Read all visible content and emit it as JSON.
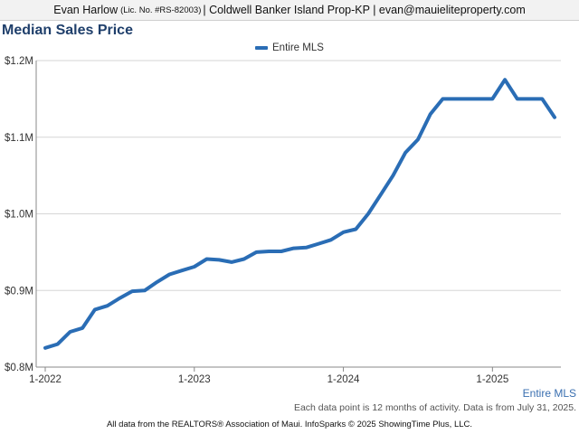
{
  "header": {
    "agent_name": "Evan Harlow",
    "license": "(Lic. No. #RS-82003)",
    "details": "| Coldwell Banker Island Prop-KP | evan@mauieliteproperty.com"
  },
  "chart_data": {
    "type": "line",
    "title": "Median Sales Price",
    "xlabel": "",
    "ylabel": "",
    "x_ticks": [
      "1-2022",
      "1-2023",
      "1-2024",
      "1-2025"
    ],
    "y_ticks": [
      "$0.8M",
      "$0.9M",
      "$1.0M",
      "$1.1M",
      "$1.2M"
    ],
    "y_tick_values": [
      0.8,
      0.9,
      1.0,
      1.1,
      1.2
    ],
    "ylim": [
      0.8,
      1.2
    ],
    "xlim": [
      "2022-01",
      "2025-06"
    ],
    "grid": "horizontal",
    "legend_position": "top-center",
    "series": [
      {
        "name": "Entire MLS",
        "color": "#2a6db5",
        "x": [
          "2022-01",
          "2022-02",
          "2022-03",
          "2022-04",
          "2022-05",
          "2022-06",
          "2022-07",
          "2022-08",
          "2022-09",
          "2022-10",
          "2022-11",
          "2022-12",
          "2023-01",
          "2023-02",
          "2023-03",
          "2023-04",
          "2023-05",
          "2023-06",
          "2023-07",
          "2023-08",
          "2023-09",
          "2023-10",
          "2023-11",
          "2023-12",
          "2024-01",
          "2024-02",
          "2024-03",
          "2024-04",
          "2024-05",
          "2024-06",
          "2024-07",
          "2024-08",
          "2024-09",
          "2024-10",
          "2024-11",
          "2024-12",
          "2025-01",
          "2025-02",
          "2025-03",
          "2025-04",
          "2025-05",
          "2025-06"
        ],
        "values": [
          0.825,
          0.83,
          0.846,
          0.851,
          0.875,
          0.88,
          0.89,
          0.899,
          0.9,
          0.911,
          0.921,
          0.926,
          0.931,
          0.941,
          0.94,
          0.937,
          0.941,
          0.95,
          0.951,
          0.951,
          0.955,
          0.956,
          0.961,
          0.966,
          0.976,
          0.98,
          1.0,
          1.025,
          1.05,
          1.08,
          1.097,
          1.13,
          1.15,
          1.15,
          1.15,
          1.15,
          1.15,
          1.175,
          1.15,
          1.15,
          1.15,
          1.126
        ]
      }
    ]
  },
  "corner_label": "Entire MLS",
  "note": "Each data point is 12 months of activity. Data is from July 31, 2025.",
  "footer": "All data from the REALTORS® Association of Maui. InfoSparks © 2025 ShowingTime Plus, LLC."
}
